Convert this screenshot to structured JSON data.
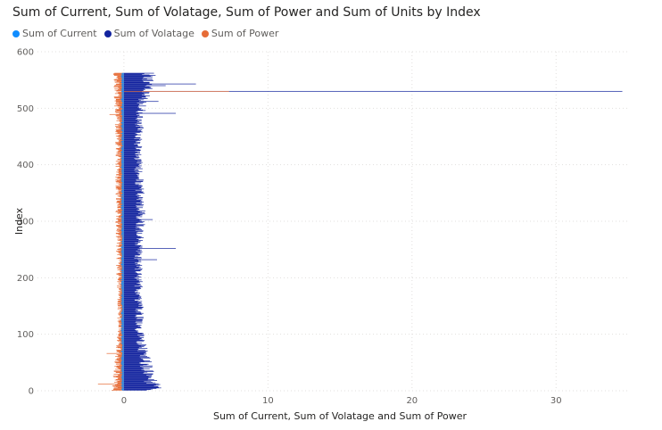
{
  "chart_data": {
    "type": "bar",
    "orientation": "horizontal",
    "title": "Sum of Current, Sum of Volatage, Sum of Power and Sum of Units by Index",
    "xlabel": "Sum of Current, Sum of Volatage and Sum of Power",
    "ylabel": "Index",
    "xlim": [
      -6,
      35
    ],
    "ylim": [
      0,
      600
    ],
    "x_ticks": [
      "0",
      "10",
      "20",
      "30"
    ],
    "y_ticks": [
      "0",
      "100",
      "200",
      "300",
      "400",
      "500",
      "600"
    ],
    "grid": true,
    "legend_position": "top-left",
    "series": [
      {
        "name": "Sum of Current",
        "color": "#118DFF"
      },
      {
        "name": "Sum of Volatage",
        "color": "#12239E"
      },
      {
        "name": "Sum of Power",
        "color": "#E66C37"
      }
    ],
    "index_range": [
      1,
      562
    ],
    "voltage_profile": [
      [
        0,
        2.3
      ],
      [
        20,
        1.8
      ],
      [
        60,
        1.4
      ],
      [
        100,
        1.1
      ],
      [
        200,
        1.0
      ],
      [
        250,
        1.0
      ],
      [
        300,
        1.2
      ],
      [
        350,
        1.1
      ],
      [
        400,
        1.0
      ],
      [
        450,
        1.0
      ],
      [
        500,
        1.2
      ],
      [
        540,
        1.6
      ],
      [
        562,
        1.7
      ]
    ],
    "voltage_spikes": [
      [
        8,
        2.4
      ],
      [
        14,
        2.2
      ],
      [
        20,
        2.1
      ],
      [
        252,
        3.6
      ],
      [
        232,
        2.3
      ],
      [
        303,
        2.0
      ],
      [
        491,
        3.6
      ],
      [
        512,
        2.4
      ],
      [
        530,
        34.6
      ],
      [
        543,
        5.0
      ],
      [
        540,
        2.9
      ],
      [
        558,
        2.2
      ]
    ],
    "power_profile": [
      [
        0,
        -0.6
      ],
      [
        100,
        -0.3
      ],
      [
        300,
        -0.4
      ],
      [
        450,
        -0.4
      ],
      [
        562,
        -0.5
      ]
    ],
    "power_spikes": [
      [
        66,
        -1.2
      ],
      [
        12,
        -1.8
      ],
      [
        489,
        -1.0
      ],
      [
        530,
        7.3
      ]
    ],
    "current_value": -0.15
  }
}
